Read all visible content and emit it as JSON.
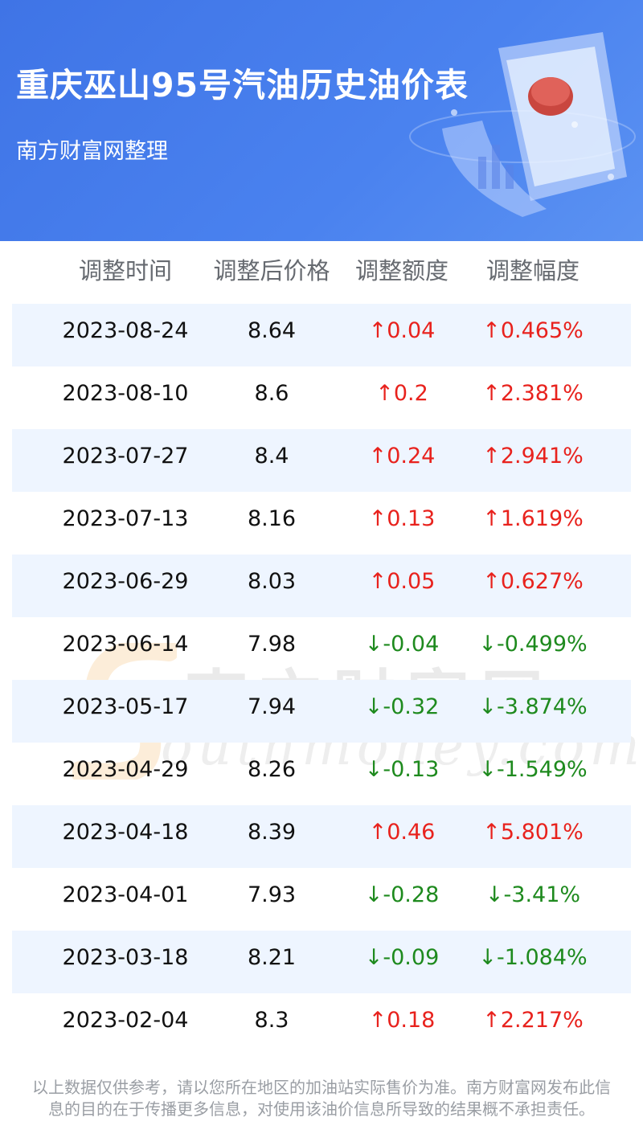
{
  "header": {
    "title": "重庆巫山95号汽油历史油价表",
    "subtitle": "南方财富网整理"
  },
  "columns": [
    "调整时间",
    "调整后价格",
    "调整额度",
    "调整幅度"
  ],
  "rows": [
    {
      "date": "2023-08-24",
      "price": "8.64",
      "change": "↑0.04",
      "pct": "↑0.465%",
      "dir": "up"
    },
    {
      "date": "2023-08-10",
      "price": "8.6",
      "change": "↑0.2",
      "pct": "↑2.381%",
      "dir": "up"
    },
    {
      "date": "2023-07-27",
      "price": "8.4",
      "change": "↑0.24",
      "pct": "↑2.941%",
      "dir": "up"
    },
    {
      "date": "2023-07-13",
      "price": "8.16",
      "change": "↑0.13",
      "pct": "↑1.619%",
      "dir": "up"
    },
    {
      "date": "2023-06-29",
      "price": "8.03",
      "change": "↑0.05",
      "pct": "↑0.627%",
      "dir": "up"
    },
    {
      "date": "2023-06-14",
      "price": "7.98",
      "change": "↓-0.04",
      "pct": "↓-0.499%",
      "dir": "down"
    },
    {
      "date": "2023-05-17",
      "price": "7.94",
      "change": "↓-0.32",
      "pct": "↓-3.874%",
      "dir": "down"
    },
    {
      "date": "2023-04-29",
      "price": "8.26",
      "change": "↓-0.13",
      "pct": "↓-1.549%",
      "dir": "down"
    },
    {
      "date": "2023-04-18",
      "price": "8.39",
      "change": "↑0.46",
      "pct": "↑5.801%",
      "dir": "up"
    },
    {
      "date": "2023-04-01",
      "price": "7.93",
      "change": "↓-0.28",
      "pct": "↓-3.41%",
      "dir": "down"
    },
    {
      "date": "2023-03-18",
      "price": "8.21",
      "change": "↓-0.09",
      "pct": "↓-1.084%",
      "dir": "down"
    },
    {
      "date": "2023-02-04",
      "price": "8.3",
      "change": "↑0.18",
      "pct": "↑2.217%",
      "dir": "up"
    }
  ],
  "watermark": {
    "cn": "南方财富网",
    "en": "outhmoney.com"
  },
  "footer": {
    "line1": "以上数据仅供参考，请以您所在地区的加油站实际售价为准。南方财富网发布此信",
    "line2": "息的目的在于传播更多信息，对使用该油价信息所导致的结果概不承担责任。"
  },
  "colors": {
    "up": "#e8221d",
    "down": "#1e8a1e",
    "row_alt": "#eef5ff",
    "header_bg": "#4a7fec"
  }
}
